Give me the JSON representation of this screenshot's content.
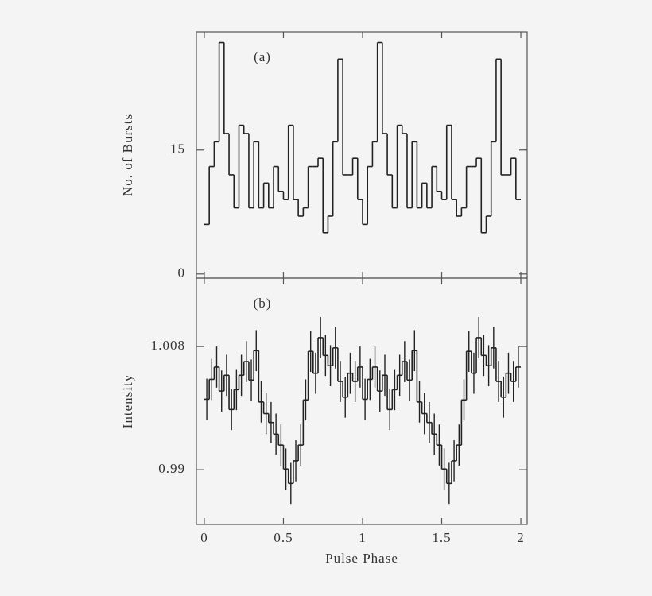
{
  "chart_data": [
    {
      "type": "histogram",
      "annotation": "(a)",
      "ylabel": "No. of Bursts",
      "bins": [
        0,
        0.03125,
        0.0625,
        0.09375,
        0.125,
        0.15625,
        0.1875,
        0.21875,
        0.25,
        0.28125,
        0.3125,
        0.34375,
        0.375,
        0.40625,
        0.4375,
        0.46875,
        0.5,
        0.53125,
        0.5625,
        0.59375,
        0.625,
        0.65625,
        0.6875,
        0.71875,
        0.75,
        0.78125,
        0.8125,
        0.84375,
        0.875,
        0.90625,
        0.9375,
        0.96875,
        1,
        1.03125,
        1.0625,
        1.09375,
        1.125,
        1.15625,
        1.1875,
        1.21875,
        1.25,
        1.28125,
        1.3125,
        1.34375,
        1.375,
        1.40625,
        1.4375,
        1.46875,
        1.5,
        1.53125,
        1.5625,
        1.59375,
        1.625,
        1.65625,
        1.6875,
        1.71875,
        1.75,
        1.78125,
        1.8125,
        1.84375,
        1.875,
        1.90625,
        1.9375,
        1.96875,
        2
      ],
      "values": [
        6,
        13,
        16,
        28,
        17,
        12,
        8,
        18,
        17,
        8,
        16,
        8,
        11,
        8,
        13,
        10,
        9,
        18,
        9,
        7,
        8,
        13,
        13,
        14,
        5,
        7,
        16,
        26,
        12,
        12,
        14,
        9,
        6,
        13,
        16,
        28,
        17,
        12,
        8,
        18,
        17,
        8,
        16,
        8,
        11,
        8,
        13,
        10,
        9,
        18,
        9,
        7,
        8,
        13,
        13,
        14,
        5,
        7,
        16,
        26,
        12,
        12,
        14,
        9
      ],
      "xlim": [
        -0.05,
        2.04
      ],
      "ylim": [
        -0.5,
        29.3
      ],
      "yticks": [
        0,
        15
      ]
    },
    {
      "type": "histogram",
      "annotation": "(b)",
      "ylabel": "Intensity",
      "xlabel": "Pulse Phase",
      "bins": [
        0,
        0.03125,
        0.0625,
        0.09375,
        0.125,
        0.15625,
        0.1875,
        0.21875,
        0.25,
        0.28125,
        0.3125,
        0.34375,
        0.375,
        0.40625,
        0.4375,
        0.46875,
        0.5,
        0.53125,
        0.5625,
        0.59375,
        0.625,
        0.65625,
        0.6875,
        0.71875,
        0.75,
        0.78125,
        0.8125,
        0.84375,
        0.875,
        0.90625,
        0.9375,
        0.96875,
        1,
        1.03125,
        1.0625,
        1.09375,
        1.125,
        1.15625,
        1.1875,
        1.21875,
        1.25,
        1.28125,
        1.3125,
        1.34375,
        1.375,
        1.40625,
        1.4375,
        1.46875,
        1.5,
        1.53125,
        1.5625,
        1.59375,
        1.625,
        1.65625,
        1.6875,
        1.71875,
        1.75,
        1.78125,
        1.8125,
        1.84375,
        1.875,
        1.90625,
        1.9375,
        1.96875,
        2
      ],
      "values": [
        1.0003,
        1.0032,
        1.005,
        1.0015,
        1.0038,
        0.9988,
        1.0017,
        1.0038,
        1.0058,
        1.0031,
        1.0074,
        0.9999,
        0.9982,
        0.9969,
        0.9952,
        0.9936,
        0.9901,
        0.988,
        0.9913,
        0.9936,
        1.0002,
        1.0073,
        1.0041,
        1.0093,
        1.0067,
        1.0052,
        1.0078,
        1.0029,
        1.0006,
        1.0041,
        1.0029,
        1.005,
        1.0003,
        1.0032,
        1.005,
        1.0015,
        1.0038,
        0.9988,
        1.0017,
        1.0038,
        1.0058,
        1.0031,
        1.0074,
        0.9999,
        0.9982,
        0.9969,
        0.9952,
        0.9936,
        0.9901,
        0.988,
        0.9913,
        0.9936,
        1.0002,
        1.0073,
        1.0041,
        1.0093,
        1.0067,
        1.0052,
        1.0078,
        1.0029,
        1.0006,
        1.0041,
        1.0029,
        1.005
      ],
      "errors": [
        0.003,
        0.003,
        0.003,
        0.003,
        0.003,
        0.003,
        0.003,
        0.003,
        0.003,
        0.003,
        0.003,
        0.003,
        0.003,
        0.003,
        0.003,
        0.003,
        0.003,
        0.003,
        0.003,
        0.003,
        0.003,
        0.003,
        0.003,
        0.003,
        0.003,
        0.003,
        0.003,
        0.003,
        0.003,
        0.003,
        0.003,
        0.003,
        0.003,
        0.003,
        0.003,
        0.003,
        0.003,
        0.003,
        0.003,
        0.003,
        0.003,
        0.003,
        0.003,
        0.003,
        0.003,
        0.003,
        0.003,
        0.003,
        0.003,
        0.003,
        0.003,
        0.003,
        0.003,
        0.003,
        0.003,
        0.003,
        0.003,
        0.003,
        0.003,
        0.003,
        0.003,
        0.003,
        0.003,
        0.003
      ],
      "xlim": [
        -0.05,
        2.04
      ],
      "ylim": [
        0.982,
        1.018
      ],
      "yticks": [
        0.99,
        1.008
      ],
      "xticks": [
        0,
        0.5,
        1,
        1.5,
        2
      ]
    }
  ]
}
